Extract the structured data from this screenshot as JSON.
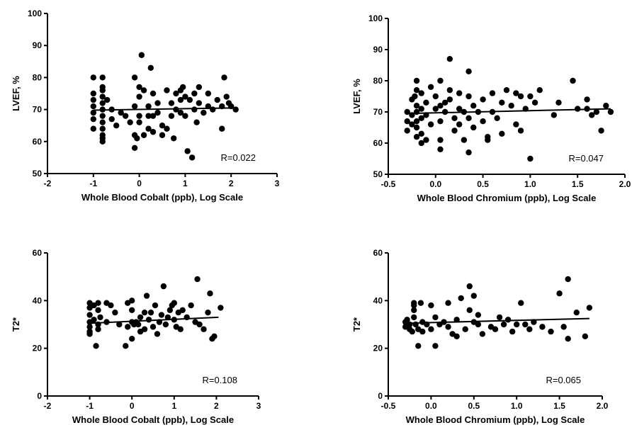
{
  "chart_data": [
    {
      "type": "scatter",
      "xlabel": "Whole Blood Cobalt (ppb), Log Scale",
      "ylabel": "LVEF, %",
      "xlim": [
        -2,
        3
      ],
      "ylim": [
        50,
        100
      ],
      "xticks": [
        -2,
        -1,
        0,
        1,
        2,
        3
      ],
      "yticks": [
        50,
        60,
        70,
        80,
        90,
        100
      ],
      "xtick_labels": [
        "-2",
        "-1",
        "0",
        "1",
        "2",
        "3"
      ],
      "ytick_labels": [
        "50",
        "60",
        "70",
        "80",
        "90",
        "100"
      ],
      "annotation": "R=0.022",
      "fit_line": [
        [
          -1.0,
          69.8
        ],
        [
          2.05,
          70.5
        ]
      ],
      "points": [
        [
          -1.0,
          80
        ],
        [
          -1.0,
          75
        ],
        [
          -1.0,
          73
        ],
        [
          -1.0,
          71
        ],
        [
          -1.0,
          69
        ],
        [
          -1.0,
          67
        ],
        [
          -1.0,
          64
        ],
        [
          -0.8,
          80
        ],
        [
          -0.8,
          77
        ],
        [
          -0.8,
          76
        ],
        [
          -0.8,
          74
        ],
        [
          -0.8,
          72
        ],
        [
          -0.8,
          70
        ],
        [
          -0.8,
          68
        ],
        [
          -0.8,
          66
        ],
        [
          -0.8,
          64
        ],
        [
          -0.8,
          62
        ],
        [
          -0.8,
          60
        ],
        [
          -0.8,
          61
        ],
        [
          -0.7,
          73
        ],
        [
          -0.6,
          70
        ],
        [
          -0.6,
          67
        ],
        [
          -0.5,
          65
        ],
        [
          -0.4,
          69
        ],
        [
          -0.3,
          68
        ],
        [
          -0.2,
          66
        ],
        [
          -0.1,
          71
        ],
        [
          -0.1,
          62
        ],
        [
          -0.1,
          58
        ],
        [
          -0.1,
          80
        ],
        [
          -0.05,
          61
        ],
        [
          0.0,
          77
        ],
        [
          0.0,
          74
        ],
        [
          0.0,
          68
        ],
        [
          0.0,
          66
        ],
        [
          0.05,
          87
        ],
        [
          0.1,
          76
        ],
        [
          0.1,
          62
        ],
        [
          0.2,
          71
        ],
        [
          0.2,
          68
        ],
        [
          0.2,
          64
        ],
        [
          0.25,
          83
        ],
        [
          0.3,
          75
        ],
        [
          0.3,
          68
        ],
        [
          0.3,
          63
        ],
        [
          0.4,
          72
        ],
        [
          0.4,
          69
        ],
        [
          0.5,
          65
        ],
        [
          0.5,
          62
        ],
        [
          0.6,
          76
        ],
        [
          0.6,
          64
        ],
        [
          0.7,
          72
        ],
        [
          0.7,
          68
        ],
        [
          0.75,
          61
        ],
        [
          0.8,
          75
        ],
        [
          0.8,
          70
        ],
        [
          0.9,
          76
        ],
        [
          0.9,
          73
        ],
        [
          0.9,
          69
        ],
        [
          0.95,
          77
        ],
        [
          1.0,
          74
        ],
        [
          1.0,
          68
        ],
        [
          1.05,
          57
        ],
        [
          1.1,
          73
        ],
        [
          1.15,
          55
        ],
        [
          1.2,
          75
        ],
        [
          1.2,
          70
        ],
        [
          1.25,
          66
        ],
        [
          1.3,
          77
        ],
        [
          1.3,
          72
        ],
        [
          1.4,
          69
        ],
        [
          1.5,
          75
        ],
        [
          1.5,
          71
        ],
        [
          1.6,
          70
        ],
        [
          1.7,
          73
        ],
        [
          1.8,
          64
        ],
        [
          1.8,
          71
        ],
        [
          1.85,
          80
        ],
        [
          1.9,
          74
        ],
        [
          1.95,
          72
        ],
        [
          2.0,
          71
        ],
        [
          2.1,
          70
        ]
      ]
    },
    {
      "type": "scatter",
      "xlabel": "Whole Blood Chromium (ppb), Log Scale",
      "ylabel": "LVEF, %",
      "xlim": [
        -0.5,
        2.0
      ],
      "ylim": [
        50,
        100
      ],
      "xticks": [
        -0.5,
        0.0,
        0.5,
        1.0,
        1.5,
        2.0
      ],
      "yticks": [
        50,
        60,
        70,
        80,
        90,
        100
      ],
      "xtick_labels": [
        "-0.5",
        "0.0",
        "0.5",
        "1.0",
        "1.5",
        "2.0"
      ],
      "ytick_labels": [
        "50",
        "60",
        "70",
        "80",
        "90",
        "100"
      ],
      "annotation": "R=0.047",
      "fit_line": [
        [
          -0.3,
          69.5
        ],
        [
          1.85,
          71.0
        ]
      ],
      "points": [
        [
          -0.3,
          70
        ],
        [
          -0.3,
          67
        ],
        [
          -0.3,
          64
        ],
        [
          -0.25,
          74
        ],
        [
          -0.25,
          69
        ],
        [
          -0.25,
          66
        ],
        [
          -0.22,
          75
        ],
        [
          -0.2,
          80
        ],
        [
          -0.2,
          77
        ],
        [
          -0.2,
          72
        ],
        [
          -0.2,
          70
        ],
        [
          -0.2,
          67
        ],
        [
          -0.2,
          65
        ],
        [
          -0.2,
          62
        ],
        [
          -0.15,
          76
        ],
        [
          -0.15,
          71
        ],
        [
          -0.15,
          68
        ],
        [
          -0.15,
          63
        ],
        [
          -0.15,
          60
        ],
        [
          -0.1,
          73
        ],
        [
          -0.1,
          69
        ],
        [
          -0.1,
          61
        ],
        [
          -0.05,
          78
        ],
        [
          -0.05,
          66
        ],
        [
          0.0,
          75
        ],
        [
          0.0,
          71
        ],
        [
          0.05,
          80
        ],
        [
          0.05,
          72
        ],
        [
          0.05,
          67
        ],
        [
          0.05,
          61
        ],
        [
          0.05,
          58
        ],
        [
          0.1,
          73
        ],
        [
          0.1,
          70
        ],
        [
          0.15,
          87
        ],
        [
          0.15,
          77
        ],
        [
          0.15,
          74
        ],
        [
          0.2,
          68
        ],
        [
          0.2,
          64
        ],
        [
          0.25,
          76
        ],
        [
          0.25,
          71
        ],
        [
          0.25,
          66
        ],
        [
          0.3,
          70
        ],
        [
          0.3,
          61
        ],
        [
          0.35,
          83
        ],
        [
          0.35,
          75
        ],
        [
          0.35,
          68
        ],
        [
          0.35,
          57
        ],
        [
          0.4,
          72
        ],
        [
          0.4,
          65
        ],
        [
          0.45,
          70
        ],
        [
          0.5,
          74
        ],
        [
          0.5,
          67
        ],
        [
          0.55,
          62
        ],
        [
          0.55,
          61
        ],
        [
          0.6,
          76
        ],
        [
          0.6,
          70
        ],
        [
          0.65,
          68
        ],
        [
          0.7,
          73
        ],
        [
          0.7,
          63
        ],
        [
          0.75,
          77
        ],
        [
          0.8,
          72
        ],
        [
          0.85,
          76
        ],
        [
          0.85,
          66
        ],
        [
          0.9,
          64
        ],
        [
          0.9,
          75
        ],
        [
          0.95,
          71
        ],
        [
          1.0,
          55
        ],
        [
          1.0,
          75
        ],
        [
          1.05,
          73
        ],
        [
          1.1,
          77
        ],
        [
          1.25,
          69
        ],
        [
          1.3,
          73
        ],
        [
          1.45,
          80
        ],
        [
          1.5,
          71
        ],
        [
          1.6,
          74
        ],
        [
          1.6,
          71
        ],
        [
          1.65,
          69
        ],
        [
          1.7,
          70
        ],
        [
          1.75,
          64
        ],
        [
          1.8,
          72
        ],
        [
          1.85,
          70
        ]
      ]
    },
    {
      "type": "scatter",
      "xlabel": "Whole Blood Cobalt (ppb), Log Scale",
      "ylabel": "T2*",
      "xlim": [
        -2,
        3
      ],
      "ylim": [
        0,
        60
      ],
      "xticks": [
        -2,
        -1,
        0,
        1,
        2,
        3
      ],
      "yticks": [
        0,
        20,
        40,
        60
      ],
      "xtick_labels": [
        "-2",
        "-1",
        "0",
        "1",
        "2",
        "3"
      ],
      "ytick_labels": [
        "0",
        "20",
        "40",
        "60"
      ],
      "annotation": "R=0.108",
      "fit_line": [
        [
          -1.0,
          30.5
        ],
        [
          2.05,
          33.0
        ]
      ],
      "points": [
        [
          -1.0,
          39
        ],
        [
          -1.0,
          37
        ],
        [
          -1.0,
          34
        ],
        [
          -1.0,
          31
        ],
        [
          -1.0,
          29
        ],
        [
          -1.0,
          27
        ],
        [
          -1.0,
          26
        ],
        [
          -0.9,
          38
        ],
        [
          -0.9,
          32
        ],
        [
          -0.85,
          21
        ],
        [
          -0.8,
          39
        ],
        [
          -0.8,
          36
        ],
        [
          -0.8,
          30
        ],
        [
          -0.8,
          28
        ],
        [
          -0.75,
          33
        ],
        [
          -0.6,
          39
        ],
        [
          -0.6,
          31
        ],
        [
          -0.5,
          38
        ],
        [
          -0.4,
          35
        ],
        [
          -0.3,
          30
        ],
        [
          -0.15,
          21
        ],
        [
          -0.1,
          29
        ],
        [
          -0.1,
          39
        ],
        [
          0.0,
          40
        ],
        [
          0.0,
          36
        ],
        [
          0.0,
          31
        ],
        [
          0.0,
          24
        ],
        [
          0.05,
          30
        ],
        [
          0.1,
          31
        ],
        [
          0.15,
          30
        ],
        [
          0.2,
          33
        ],
        [
          0.2,
          27
        ],
        [
          0.3,
          35
        ],
        [
          0.3,
          28
        ],
        [
          0.35,
          42
        ],
        [
          0.4,
          32
        ],
        [
          0.45,
          35
        ],
        [
          0.5,
          29
        ],
        [
          0.55,
          38
        ],
        [
          0.6,
          26
        ],
        [
          0.65,
          31
        ],
        [
          0.7,
          34
        ],
        [
          0.75,
          46
        ],
        [
          0.8,
          30
        ],
        [
          0.85,
          33
        ],
        [
          0.9,
          36
        ],
        [
          0.95,
          38
        ],
        [
          1.0,
          39
        ],
        [
          1.0,
          32
        ],
        [
          1.05,
          29
        ],
        [
          1.1,
          35
        ],
        [
          1.15,
          28
        ],
        [
          1.2,
          36
        ],
        [
          1.3,
          33
        ],
        [
          1.4,
          38
        ],
        [
          1.5,
          31
        ],
        [
          1.55,
          49
        ],
        [
          1.6,
          30
        ],
        [
          1.7,
          28
        ],
        [
          1.8,
          35
        ],
        [
          1.85,
          43
        ],
        [
          1.9,
          24
        ],
        [
          1.95,
          25
        ],
        [
          2.1,
          37
        ]
      ]
    },
    {
      "type": "scatter",
      "xlabel": "Whole Blood Chromium (ppb), Log Scale",
      "ylabel": "T2*",
      "xlim": [
        -0.5,
        2.0
      ],
      "ylim": [
        0,
        60
      ],
      "xticks": [
        -0.5,
        0.0,
        0.5,
        1.0,
        1.5,
        2.0
      ],
      "yticks": [
        0,
        20,
        40,
        60
      ],
      "xtick_labels": [
        "-0.5",
        "0.0",
        "0.5",
        "1.0",
        "1.5",
        "2.0"
      ],
      "ytick_labels": [
        "0",
        "20",
        "40",
        "60"
      ],
      "annotation": "R=0.065",
      "fit_line": [
        [
          -0.3,
          30.5
        ],
        [
          1.85,
          32.5
        ]
      ],
      "points": [
        [
          -0.3,
          31
        ],
        [
          -0.3,
          29
        ],
        [
          -0.28,
          32
        ],
        [
          -0.25,
          28
        ],
        [
          -0.25,
          30
        ],
        [
          -0.22,
          27
        ],
        [
          -0.2,
          39
        ],
        [
          -0.2,
          38
        ],
        [
          -0.2,
          36
        ],
        [
          -0.2,
          33
        ],
        [
          -0.18,
          30
        ],
        [
          -0.15,
          28
        ],
        [
          -0.15,
          21
        ],
        [
          -0.12,
          39
        ],
        [
          -0.1,
          31
        ],
        [
          -0.1,
          27
        ],
        [
          -0.05,
          30
        ],
        [
          0.0,
          38
        ],
        [
          0.0,
          28
        ],
        [
          0.05,
          21
        ],
        [
          0.05,
          33
        ],
        [
          0.1,
          30
        ],
        [
          0.15,
          31
        ],
        [
          0.2,
          39
        ],
        [
          0.2,
          29
        ],
        [
          0.25,
          26
        ],
        [
          0.3,
          32
        ],
        [
          0.3,
          25
        ],
        [
          0.35,
          41
        ],
        [
          0.4,
          28
        ],
        [
          0.45,
          46
        ],
        [
          0.45,
          36
        ],
        [
          0.5,
          42
        ],
        [
          0.5,
          31
        ],
        [
          0.55,
          34
        ],
        [
          0.55,
          30
        ],
        [
          0.6,
          26
        ],
        [
          0.7,
          29
        ],
        [
          0.75,
          28
        ],
        [
          0.8,
          33
        ],
        [
          0.85,
          30
        ],
        [
          0.9,
          32
        ],
        [
          0.95,
          27
        ],
        [
          1.0,
          30
        ],
        [
          1.05,
          39
        ],
        [
          1.1,
          30
        ],
        [
          1.15,
          28
        ],
        [
          1.2,
          31
        ],
        [
          1.3,
          29
        ],
        [
          1.4,
          27
        ],
        [
          1.5,
          43
        ],
        [
          1.55,
          29
        ],
        [
          1.6,
          49
        ],
        [
          1.6,
          24
        ],
        [
          1.7,
          35
        ],
        [
          1.8,
          25
        ],
        [
          1.85,
          37
        ]
      ]
    }
  ]
}
